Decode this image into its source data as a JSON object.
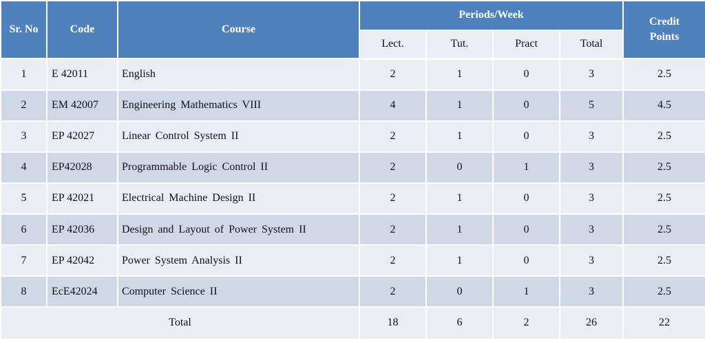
{
  "header": {
    "sr_no": "Sr. No",
    "code": "Code",
    "course": "Course",
    "periods_week": "Periods/Week",
    "credit_line1": "Credit",
    "credit_line2": "Points",
    "lect": "Lect.",
    "tut": "Tut.",
    "pract": "Pract",
    "total": "Total"
  },
  "rows": [
    {
      "sr": "1",
      "code": "E 42011",
      "course": "English",
      "lect": "2",
      "tut": "1",
      "pract": "0",
      "total": "3",
      "credit": "2.5"
    },
    {
      "sr": "2",
      "code": "EM 42007",
      "course": "Engineering Mathematics VIII",
      "lect": "4",
      "tut": "1",
      "pract": "0",
      "total": "5",
      "credit": "4.5"
    },
    {
      "sr": "3",
      "code": "EP 42027",
      "course": "Linear Control System II",
      "lect": "2",
      "tut": "1",
      "pract": "0",
      "total": "3",
      "credit": "2.5"
    },
    {
      "sr": "4",
      "code": "EP42028",
      "course": "Programmable Logic Control II",
      "lect": "2",
      "tut": "0",
      "pract": "1",
      "total": "3",
      "credit": "2.5"
    },
    {
      "sr": "5",
      "code": "EP 42021",
      "course": "Electrical Machine Design II",
      "lect": "2",
      "tut": "1",
      "pract": "0",
      "total": "3",
      "credit": "2.5"
    },
    {
      "sr": "6",
      "code": "EP 42036",
      "course": "Design and Layout of Power System II",
      "lect": "2",
      "tut": "1",
      "pract": "0",
      "total": "3",
      "credit": "2.5"
    },
    {
      "sr": "7",
      "code": "EP 42042",
      "course": "Power System Analysis II",
      "lect": "2",
      "tut": "1",
      "pract": "0",
      "total": "3",
      "credit": "2.5"
    },
    {
      "sr": "8",
      "code": "EcE42024",
      "course": "Computer Science II",
      "lect": "2",
      "tut": "0",
      "pract": "1",
      "total": "3",
      "credit": "2.5"
    }
  ],
  "totals": {
    "label": "Total",
    "lect": "18",
    "tut": "6",
    "pract": "2",
    "total": "26",
    "credit": "22"
  },
  "colors": {
    "header_bg": "#4f81bd",
    "row_light": "#e9edf4",
    "row_dark": "#d0d8e8"
  }
}
